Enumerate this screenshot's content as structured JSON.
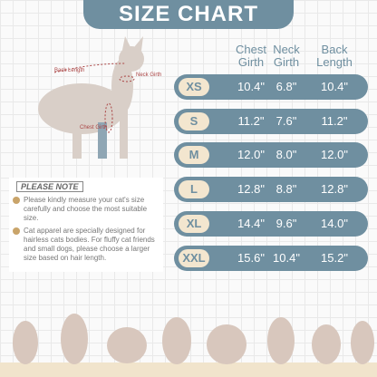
{
  "header": {
    "title": "SIZE CHART"
  },
  "diagram": {
    "labels": [
      "Back Length",
      "Neck Girth",
      "Chest Girth"
    ]
  },
  "table": {
    "columns": [
      "Chest\nGirth",
      "Neck\nGirth",
      "Back\nLength"
    ],
    "rows": [
      [
        "XS",
        "10.4\"",
        "6.8\"",
        "10.4\""
      ],
      [
        "S",
        "11.2\"",
        "7.6\"",
        "11.2\""
      ],
      [
        "M",
        "12.0\"",
        "8.0\"",
        "12.0\""
      ],
      [
        "L",
        "12.8\"",
        "8.8\"",
        "12.8\""
      ],
      [
        "XL",
        "14.4\"",
        "9.6\"",
        "14.0\""
      ],
      [
        "XXL",
        "15.6\"",
        "10.4\"",
        "15.2\""
      ]
    ]
  },
  "note": {
    "title": "PLEASE NOTE",
    "items": [
      "Please kindly measure your cat's size carefully and choose the most suitable size.",
      "Cat apparel are specially designed for hairless cats bodies. For fluffy cat friends and small dogs, please choose a larger size based on hair length."
    ]
  }
}
